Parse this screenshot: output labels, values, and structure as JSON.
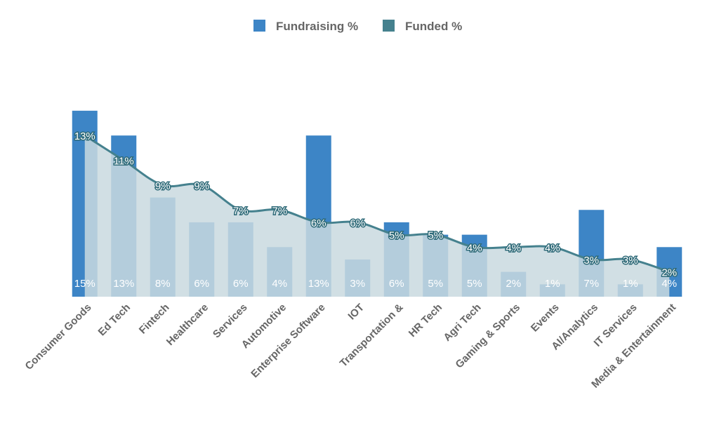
{
  "colors": {
    "fundraising": "#3d85c6",
    "funded_line": "#45818e",
    "funded_area": "#c9d9df"
  },
  "legend": [
    {
      "label": "Fundraising %",
      "color": "#3d85c6"
    },
    {
      "label": "Funded %",
      "color": "#45818e"
    }
  ],
  "chart_data": {
    "type": "bar",
    "categories": [
      "Consumer Goods",
      "Ed Tech",
      "Fintech",
      "Healthcare",
      "Services",
      "Automotive",
      "Enterprise Software",
      "IOT",
      "Transportation &",
      "HR Tech",
      "Agri Tech",
      "Gaming & Sports",
      "Events",
      "AI/Analytics",
      "IT Services",
      "Media & Entertainment"
    ],
    "series": [
      {
        "name": "Fundraising %",
        "type": "bar",
        "values": [
          15,
          13,
          8,
          6,
          6,
          4,
          13,
          3,
          6,
          5,
          5,
          2,
          1,
          7,
          1,
          4
        ],
        "labels": [
          "15%",
          "13%",
          "8%",
          "6%",
          "6%",
          "4%",
          "13%",
          "3%",
          "6%",
          "5%",
          "5%",
          "2%",
          "1%",
          "7%",
          "1%",
          "4%"
        ]
      },
      {
        "name": "Funded %",
        "type": "area",
        "values": [
          13,
          11,
          9,
          9,
          7,
          7,
          6,
          6,
          5,
          5,
          4,
          4,
          4,
          3,
          3,
          2
        ],
        "labels": [
          "13%",
          "11%",
          "9%",
          "9%",
          "7%",
          "7%",
          "6%",
          "6%",
          "5%",
          "5%",
          "4%",
          "4%",
          "4%",
          "3%",
          "3%",
          "2%"
        ]
      }
    ],
    "ylim": [
      0,
      15.5
    ],
    "grid": false,
    "legend_position": "top-center"
  }
}
